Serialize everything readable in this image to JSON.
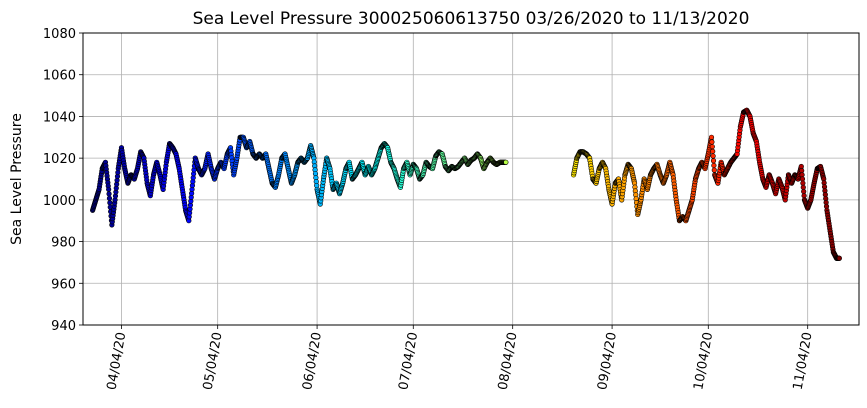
{
  "chart_data": {
    "type": "scatter",
    "title": "Sea Level Pressure 300025060613750  03/26/2020 to 11/13/2020",
    "xlabel": "",
    "ylabel": "Sea Level Pressure",
    "xlim": [
      "2020-03-23",
      "2020-11-20"
    ],
    "ylim": [
      940,
      1080
    ],
    "yticks": [
      940,
      960,
      980,
      1000,
      1020,
      1040,
      1060,
      1080
    ],
    "xticks": [
      {
        "date": "2020-04-04",
        "label": "04/04/20"
      },
      {
        "date": "2020-05-04",
        "label": "05/04/20"
      },
      {
        "date": "2020-06-04",
        "label": "06/04/20"
      },
      {
        "date": "2020-07-04",
        "label": "07/04/20"
      },
      {
        "date": "2020-08-04",
        "label": "08/04/20"
      },
      {
        "date": "2020-09-04",
        "label": "09/04/20"
      },
      {
        "date": "2020-10-04",
        "label": "10/04/20"
      },
      {
        "date": "2020-11-04",
        "label": "11/04/20"
      }
    ],
    "grid": true,
    "colormap": "jet",
    "marker_edge_color": "#000000",
    "series": [
      {
        "points": [
          [
            "2020-03-26",
            995
          ],
          [
            "2020-03-27",
            1000
          ],
          [
            "2020-03-28",
            1005
          ],
          [
            "2020-03-29",
            1015
          ],
          [
            "2020-03-30",
            1018
          ],
          [
            "2020-03-31",
            1005
          ],
          [
            "2020-04-01",
            988
          ],
          [
            "2020-04-02",
            1000
          ],
          [
            "2020-04-03",
            1015
          ],
          [
            "2020-04-04",
            1025
          ],
          [
            "2020-04-05",
            1015
          ],
          [
            "2020-04-06",
            1008
          ],
          [
            "2020-04-07",
            1012
          ],
          [
            "2020-04-08",
            1010
          ],
          [
            "2020-04-09",
            1015
          ],
          [
            "2020-04-10",
            1023
          ],
          [
            "2020-04-11",
            1020
          ],
          [
            "2020-04-12",
            1008
          ],
          [
            "2020-04-13",
            1002
          ],
          [
            "2020-04-14",
            1012
          ],
          [
            "2020-04-15",
            1018
          ],
          [
            "2020-04-16",
            1012
          ],
          [
            "2020-04-17",
            1005
          ],
          [
            "2020-04-18",
            1018
          ],
          [
            "2020-04-19",
            1027
          ],
          [
            "2020-04-20",
            1025
          ],
          [
            "2020-04-21",
            1022
          ],
          [
            "2020-04-22",
            1015
          ],
          [
            "2020-04-23",
            1005
          ],
          [
            "2020-04-24",
            995
          ],
          [
            "2020-04-25",
            990
          ],
          [
            "2020-04-26",
            1005
          ],
          [
            "2020-04-27",
            1020
          ],
          [
            "2020-04-28",
            1015
          ],
          [
            "2020-04-29",
            1012
          ],
          [
            "2020-04-30",
            1015
          ],
          [
            "2020-05-01",
            1022
          ],
          [
            "2020-05-02",
            1015
          ],
          [
            "2020-05-03",
            1010
          ],
          [
            "2020-05-04",
            1015
          ],
          [
            "2020-05-05",
            1018
          ],
          [
            "2020-05-06",
            1015
          ],
          [
            "2020-05-07",
            1022
          ],
          [
            "2020-05-08",
            1025
          ],
          [
            "2020-05-09",
            1012
          ],
          [
            "2020-05-10",
            1020
          ],
          [
            "2020-05-11",
            1030
          ],
          [
            "2020-05-12",
            1030
          ],
          [
            "2020-05-13",
            1025
          ],
          [
            "2020-05-14",
            1028
          ],
          [
            "2020-05-15",
            1022
          ],
          [
            "2020-05-16",
            1020
          ],
          [
            "2020-05-17",
            1022
          ],
          [
            "2020-05-18",
            1020
          ],
          [
            "2020-05-19",
            1022
          ],
          [
            "2020-05-20",
            1015
          ],
          [
            "2020-05-21",
            1008
          ],
          [
            "2020-05-22",
            1006
          ],
          [
            "2020-05-23",
            1012
          ],
          [
            "2020-05-24",
            1020
          ],
          [
            "2020-05-25",
            1022
          ],
          [
            "2020-05-26",
            1015
          ],
          [
            "2020-05-27",
            1008
          ],
          [
            "2020-05-28",
            1012
          ],
          [
            "2020-05-29",
            1018
          ],
          [
            "2020-05-30",
            1020
          ],
          [
            "2020-05-31",
            1018
          ],
          [
            "2020-06-01",
            1020
          ],
          [
            "2020-06-02",
            1026
          ],
          [
            "2020-06-03",
            1020
          ],
          [
            "2020-06-04",
            1005
          ],
          [
            "2020-06-05",
            998
          ],
          [
            "2020-06-06",
            1010
          ],
          [
            "2020-06-07",
            1020
          ],
          [
            "2020-06-08",
            1015
          ],
          [
            "2020-06-09",
            1005
          ],
          [
            "2020-06-10",
            1008
          ],
          [
            "2020-06-11",
            1003
          ],
          [
            "2020-06-12",
            1008
          ],
          [
            "2020-06-13",
            1015
          ],
          [
            "2020-06-14",
            1018
          ],
          [
            "2020-06-15",
            1010
          ],
          [
            "2020-06-16",
            1012
          ],
          [
            "2020-06-17",
            1015
          ],
          [
            "2020-06-18",
            1018
          ],
          [
            "2020-06-19",
            1012
          ],
          [
            "2020-06-20",
            1016
          ],
          [
            "2020-06-21",
            1012
          ],
          [
            "2020-06-22",
            1015
          ],
          [
            "2020-06-23",
            1020
          ],
          [
            "2020-06-24",
            1025
          ],
          [
            "2020-06-25",
            1027
          ],
          [
            "2020-06-26",
            1025
          ],
          [
            "2020-06-27",
            1018
          ],
          [
            "2020-06-28",
            1015
          ],
          [
            "2020-06-29",
            1010
          ],
          [
            "2020-06-30",
            1006
          ],
          [
            "2020-07-01",
            1015
          ],
          [
            "2020-07-02",
            1018
          ],
          [
            "2020-07-03",
            1012
          ],
          [
            "2020-07-04",
            1017
          ],
          [
            "2020-07-05",
            1015
          ],
          [
            "2020-07-06",
            1010
          ],
          [
            "2020-07-07",
            1012
          ],
          [
            "2020-07-08",
            1018
          ],
          [
            "2020-07-09",
            1016
          ],
          [
            "2020-07-10",
            1015
          ],
          [
            "2020-07-11",
            1021
          ],
          [
            "2020-07-12",
            1023
          ],
          [
            "2020-07-13",
            1022
          ],
          [
            "2020-07-14",
            1016
          ],
          [
            "2020-07-15",
            1014
          ],
          [
            "2020-07-16",
            1016
          ],
          [
            "2020-07-17",
            1015
          ],
          [
            "2020-07-18",
            1016
          ],
          [
            "2020-07-19",
            1018
          ],
          [
            "2020-07-20",
            1020
          ],
          [
            "2020-07-21",
            1017
          ],
          [
            "2020-07-22",
            1019
          ],
          [
            "2020-07-23",
            1020
          ],
          [
            "2020-07-24",
            1022
          ],
          [
            "2020-07-25",
            1020
          ],
          [
            "2020-07-26",
            1015
          ],
          [
            "2020-07-27",
            1018
          ],
          [
            "2020-07-28",
            1020
          ],
          [
            "2020-07-29",
            1018
          ],
          [
            "2020-07-30",
            1017
          ],
          [
            "2020-07-31",
            1018
          ],
          [
            "2020-08-01",
            1018
          ]
        ]
      },
      {
        "points": [
          [
            "2020-08-23",
            1012
          ],
          [
            "2020-08-24",
            1020
          ],
          [
            "2020-08-25",
            1023
          ],
          [
            "2020-08-26",
            1023
          ],
          [
            "2020-08-27",
            1022
          ],
          [
            "2020-08-28",
            1020
          ],
          [
            "2020-08-29",
            1010
          ],
          [
            "2020-08-30",
            1008
          ],
          [
            "2020-08-31",
            1015
          ],
          [
            "2020-09-01",
            1018
          ],
          [
            "2020-09-02",
            1015
          ],
          [
            "2020-09-03",
            1005
          ],
          [
            "2020-09-04",
            998
          ],
          [
            "2020-09-05",
            1008
          ],
          [
            "2020-09-06",
            1010
          ],
          [
            "2020-09-07",
            1000
          ],
          [
            "2020-09-08",
            1012
          ],
          [
            "2020-09-09",
            1017
          ],
          [
            "2020-09-10",
            1015
          ],
          [
            "2020-09-11",
            1008
          ],
          [
            "2020-09-12",
            993
          ],
          [
            "2020-09-13",
            1000
          ],
          [
            "2020-09-14",
            1010
          ],
          [
            "2020-09-15",
            1005
          ],
          [
            "2020-09-16",
            1012
          ],
          [
            "2020-09-17",
            1015
          ],
          [
            "2020-09-18",
            1017
          ],
          [
            "2020-09-19",
            1012
          ],
          [
            "2020-09-20",
            1008
          ],
          [
            "2020-09-21",
            1012
          ],
          [
            "2020-09-22",
            1018
          ],
          [
            "2020-09-23",
            1012
          ],
          [
            "2020-09-24",
            1000
          ],
          [
            "2020-09-25",
            990
          ],
          [
            "2020-09-26",
            992
          ],
          [
            "2020-09-27",
            990
          ],
          [
            "2020-09-28",
            995
          ],
          [
            "2020-09-29",
            1000
          ],
          [
            "2020-09-30",
            1010
          ],
          [
            "2020-10-01",
            1015
          ],
          [
            "2020-10-02",
            1018
          ],
          [
            "2020-10-03",
            1015
          ],
          [
            "2020-10-04",
            1022
          ],
          [
            "2020-10-05",
            1030
          ],
          [
            "2020-10-06",
            1012
          ],
          [
            "2020-10-07",
            1008
          ],
          [
            "2020-10-08",
            1018
          ],
          [
            "2020-10-09",
            1012
          ],
          [
            "2020-10-10",
            1015
          ],
          [
            "2020-10-11",
            1018
          ],
          [
            "2020-10-12",
            1020
          ],
          [
            "2020-10-13",
            1022
          ],
          [
            "2020-10-14",
            1035
          ],
          [
            "2020-10-15",
            1042
          ],
          [
            "2020-10-16",
            1043
          ],
          [
            "2020-10-17",
            1040
          ],
          [
            "2020-10-18",
            1032
          ],
          [
            "2020-10-19",
            1028
          ],
          [
            "2020-10-20",
            1018
          ],
          [
            "2020-10-21",
            1010
          ],
          [
            "2020-10-22",
            1006
          ],
          [
            "2020-10-23",
            1012
          ],
          [
            "2020-10-24",
            1008
          ],
          [
            "2020-10-25",
            1003
          ],
          [
            "2020-10-26",
            1010
          ],
          [
            "2020-10-27",
            1006
          ],
          [
            "2020-10-28",
            1000
          ],
          [
            "2020-10-29",
            1012
          ],
          [
            "2020-10-30",
            1008
          ],
          [
            "2020-10-31",
            1012
          ],
          [
            "2020-11-01",
            1010
          ],
          [
            "2020-11-02",
            1016
          ],
          [
            "2020-11-03",
            1000
          ],
          [
            "2020-11-04",
            996
          ],
          [
            "2020-11-05",
            1000
          ],
          [
            "2020-11-06",
            1008
          ],
          [
            "2020-11-07",
            1015
          ],
          [
            "2020-11-08",
            1016
          ],
          [
            "2020-11-09",
            1010
          ],
          [
            "2020-11-10",
            995
          ],
          [
            "2020-11-11",
            985
          ],
          [
            "2020-11-12",
            975
          ],
          [
            "2020-11-13",
            972
          ]
        ]
      }
    ]
  }
}
